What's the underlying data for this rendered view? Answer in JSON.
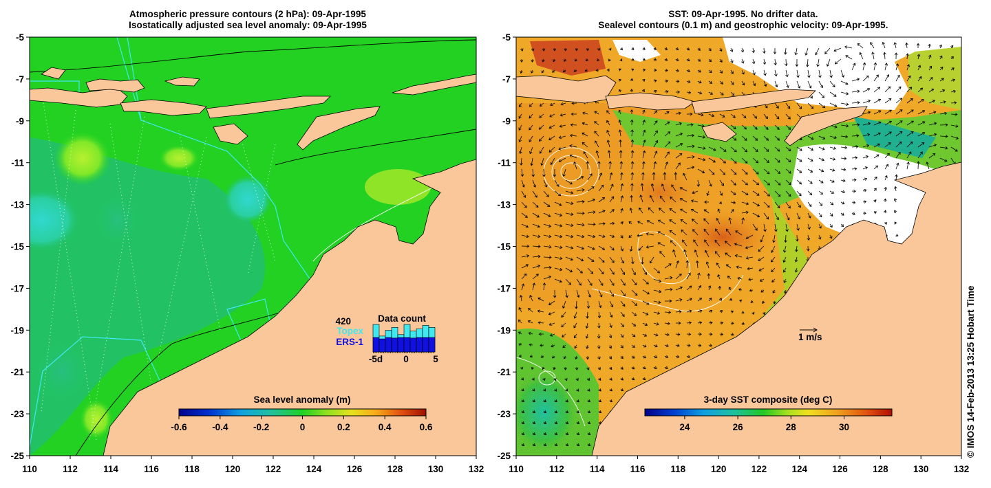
{
  "left_panel": {
    "title_line1": "Atmospheric pressure contours (2 hPa): 09-Apr-1995",
    "title_line2": "Isostatically adjusted sea level anomaly: 09-Apr-1995",
    "lat_ticks": [
      "-5",
      "-7",
      "-9",
      "-11",
      "-13",
      "-15",
      "-17",
      "-19",
      "-21",
      "-23",
      "-25"
    ],
    "lon_ticks": [
      "110",
      "112",
      "114",
      "116",
      "118",
      "120",
      "122",
      "124",
      "126",
      "128",
      "130",
      "132"
    ],
    "colorbar": {
      "title": "Sea level anomaly (m)",
      "ticks": [
        "-0.6",
        "-0.4",
        "-0.2",
        "0",
        "0.2",
        "0.4",
        "0.6"
      ],
      "value_range": [
        -0.6,
        0.6
      ]
    },
    "data_count": {
      "title": "Data count",
      "count": "420",
      "topex_label": "Topex",
      "ers_label": "ERS-1",
      "axis_start": "-5d",
      "axis_mid": "0",
      "axis_end": "5",
      "topex_color": "#40e8f0",
      "ers_color": "#1010e0",
      "bars_topex_fraction": [
        0.95,
        0.55,
        0.75,
        0.85,
        0.6,
        0.95,
        0.72,
        0.8,
        0.92,
        0.85
      ],
      "bars_ers_fraction": [
        0.5,
        0.45,
        0.5,
        0.48,
        0.5,
        0.5,
        0.48,
        0.5,
        0.5,
        0.5
      ]
    }
  },
  "right_panel": {
    "title_line1": "SST: 09-Apr-1995. No drifter data.",
    "title_line2": "Sealevel contours (0.1 m) and geostrophic velocity: 09-Apr-1995.",
    "lat_ticks": [
      "-5",
      "-7",
      "-9",
      "-11",
      "-13",
      "-15",
      "-17",
      "-19",
      "-21",
      "-23",
      "-25"
    ],
    "lon_ticks": [
      "110",
      "112",
      "114",
      "116",
      "118",
      "120",
      "122",
      "124",
      "126",
      "128",
      "130",
      "132"
    ],
    "colorbar": {
      "title": "3-day SST composite (deg C)",
      "ticks": [
        "24",
        "26",
        "28",
        "30"
      ],
      "value_range": [
        22.5,
        31.8
      ]
    },
    "velocity_scale": "1 m/s"
  },
  "credit": "© IMOS 14-Feb-2013 13:25 Hobart Time",
  "colors": {
    "land": "#f9c79a",
    "ocean_green": "#22d122",
    "sst_orange": "#f0a020",
    "colorbar_low": "#00008b",
    "colorbar_high": "#b00000"
  }
}
